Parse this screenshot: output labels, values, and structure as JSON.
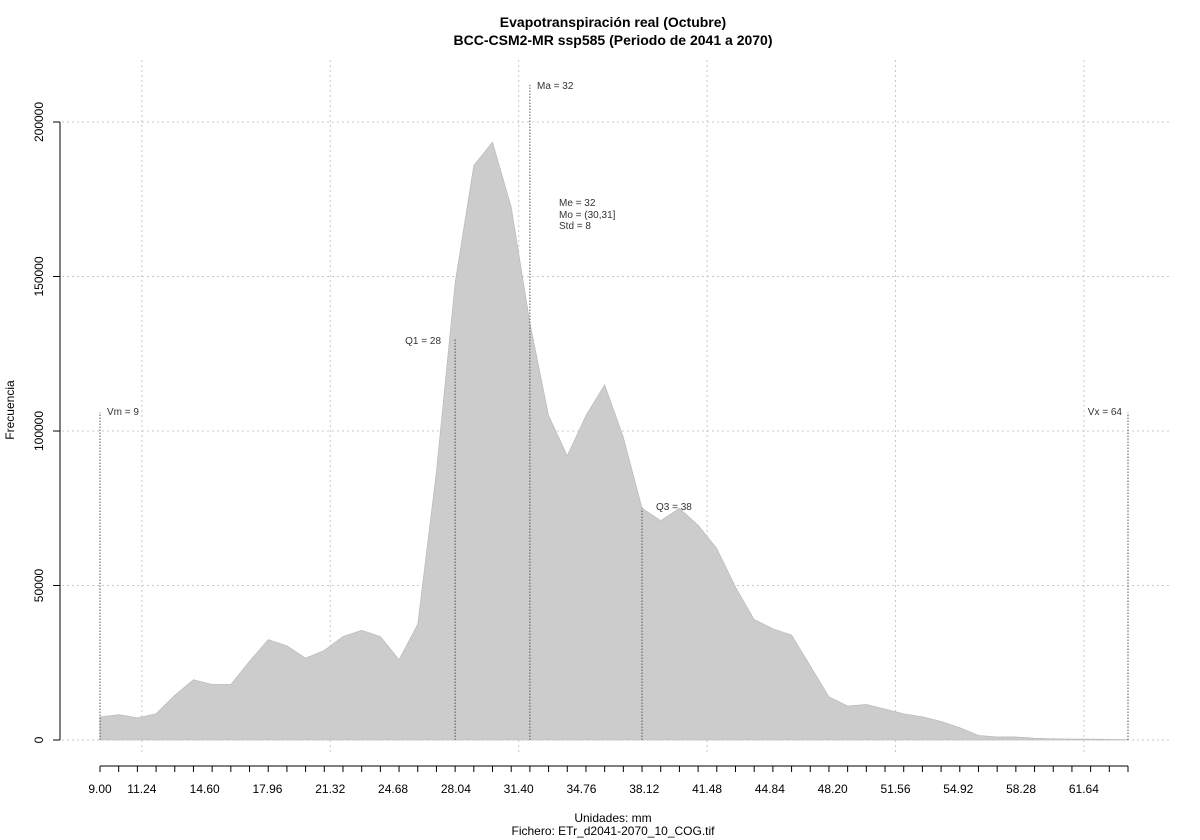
{
  "chart_data": {
    "type": "area",
    "title": "Evapotranspiración real (Octubre)",
    "subtitle": "BCC-CSM2-MR ssp585 (Periodo de 2041 a 2070)",
    "xlabel": "Unidades: mm",
    "xlabel2": "Fichero: ETr_d2041-2070_10_COG.tif",
    "ylabel": "Frecuencia",
    "xlim": [
      9,
      64
    ],
    "ylim": [
      0,
      200000
    ],
    "grid": true,
    "fill_color": "#cccccc",
    "x_ticks": [
      "9.00",
      "11.24",
      "14.60",
      "17.96",
      "21.32",
      "24.68",
      "28.04",
      "31.40",
      "34.76",
      "38.12",
      "41.48",
      "44.84",
      "48.20",
      "51.56",
      "54.92",
      "58.28",
      "61.64"
    ],
    "x_tick_values": [
      9.0,
      11.24,
      14.6,
      17.96,
      21.32,
      24.68,
      28.04,
      31.4,
      34.76,
      38.12,
      41.48,
      44.84,
      48.2,
      51.56,
      54.92,
      58.28,
      61.64
    ],
    "y_ticks": [
      "0",
      "50000",
      "100000",
      "150000",
      "200000"
    ],
    "y_tick_values": [
      0,
      50000,
      100000,
      150000,
      200000
    ],
    "x": [
      9,
      10,
      11,
      12,
      13,
      14,
      15,
      16,
      17,
      18,
      19,
      20,
      21,
      22,
      23,
      24,
      25,
      26,
      27,
      28,
      29,
      30,
      31,
      32,
      33,
      34,
      35,
      36,
      37,
      38,
      39,
      40,
      41,
      42,
      43,
      44,
      45,
      46,
      47,
      48,
      49,
      50,
      51,
      52,
      53,
      54,
      55,
      56,
      57,
      58,
      59,
      60,
      61,
      62,
      63,
      64
    ],
    "values": [
      7500,
      8200,
      7200,
      8500,
      14500,
      19500,
      18000,
      18000,
      25500,
      32500,
      30500,
      26500,
      29000,
      33500,
      35500,
      33500,
      26000,
      37500,
      87000,
      148000,
      186000,
      193500,
      172500,
      135000,
      105000,
      92000,
      105000,
      115000,
      98000,
      75000,
      71000,
      75000,
      69500,
      62000,
      49500,
      39000,
      36000,
      34000,
      24000,
      14000,
      11000,
      11500,
      10000,
      8500,
      7500,
      6000,
      4000,
      1500,
      1000,
      1000,
      600,
      400,
      300,
      300,
      200,
      100
    ],
    "annotations": {
      "vm": {
        "label": "Vm = 9",
        "x": 9,
        "y": 106000
      },
      "q1": {
        "label": "Q1 = 28",
        "x": 28,
        "y": 130000
      },
      "ma": {
        "label": "Ma = 32",
        "x": 32,
        "y": 212000
      },
      "q3": {
        "label": "Q3 = 38",
        "x": 38,
        "y": 75000
      },
      "vx": {
        "label": "Vx = 64",
        "x": 64,
        "y": 106000
      }
    },
    "stats": [
      "Me = 32",
      "Mo = (30,31]",
      "Std = 8"
    ]
  }
}
